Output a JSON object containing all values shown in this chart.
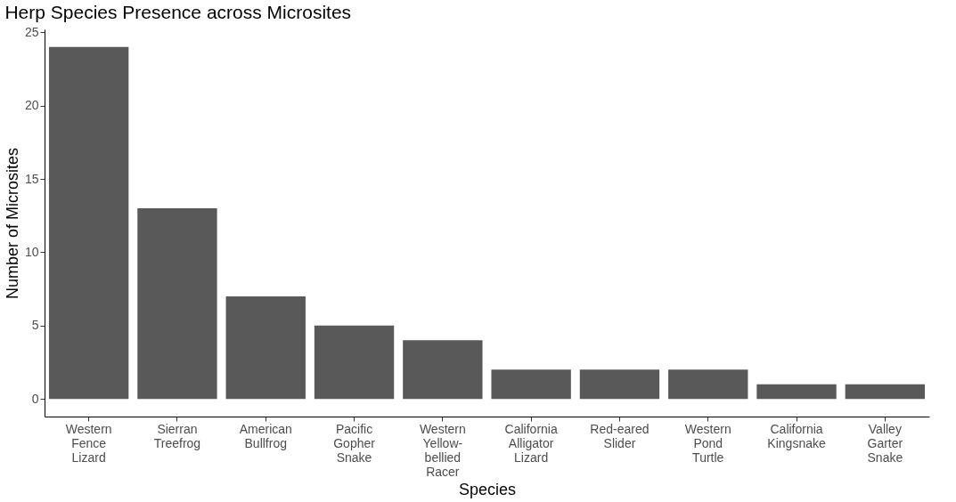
{
  "chart_data": {
    "type": "bar",
    "title": "Herp Species Presence across Microsites",
    "xlabel": "Species",
    "ylabel": "Number of Microsites",
    "categories": [
      "Western\nFence\nLizard",
      "Sierran\nTreefrog",
      "American\nBullfrog",
      "Pacific\nGopher\nSnake",
      "Western\nYellow-\nbellied\nRacer",
      "California\nAlligator\nLizard",
      "Red-eared\nSlider",
      "Western\nPond\nTurtle",
      "California\nKingsnake",
      "Valley\nGarter\nSnake"
    ],
    "values": [
      24,
      13,
      7,
      5,
      4,
      2,
      2,
      2,
      1,
      1
    ],
    "color": "#595959",
    "ylim": [
      -1.2,
      25.2
    ],
    "yticks": [
      0,
      5,
      10,
      15,
      20,
      25
    ],
    "grid": false
  }
}
